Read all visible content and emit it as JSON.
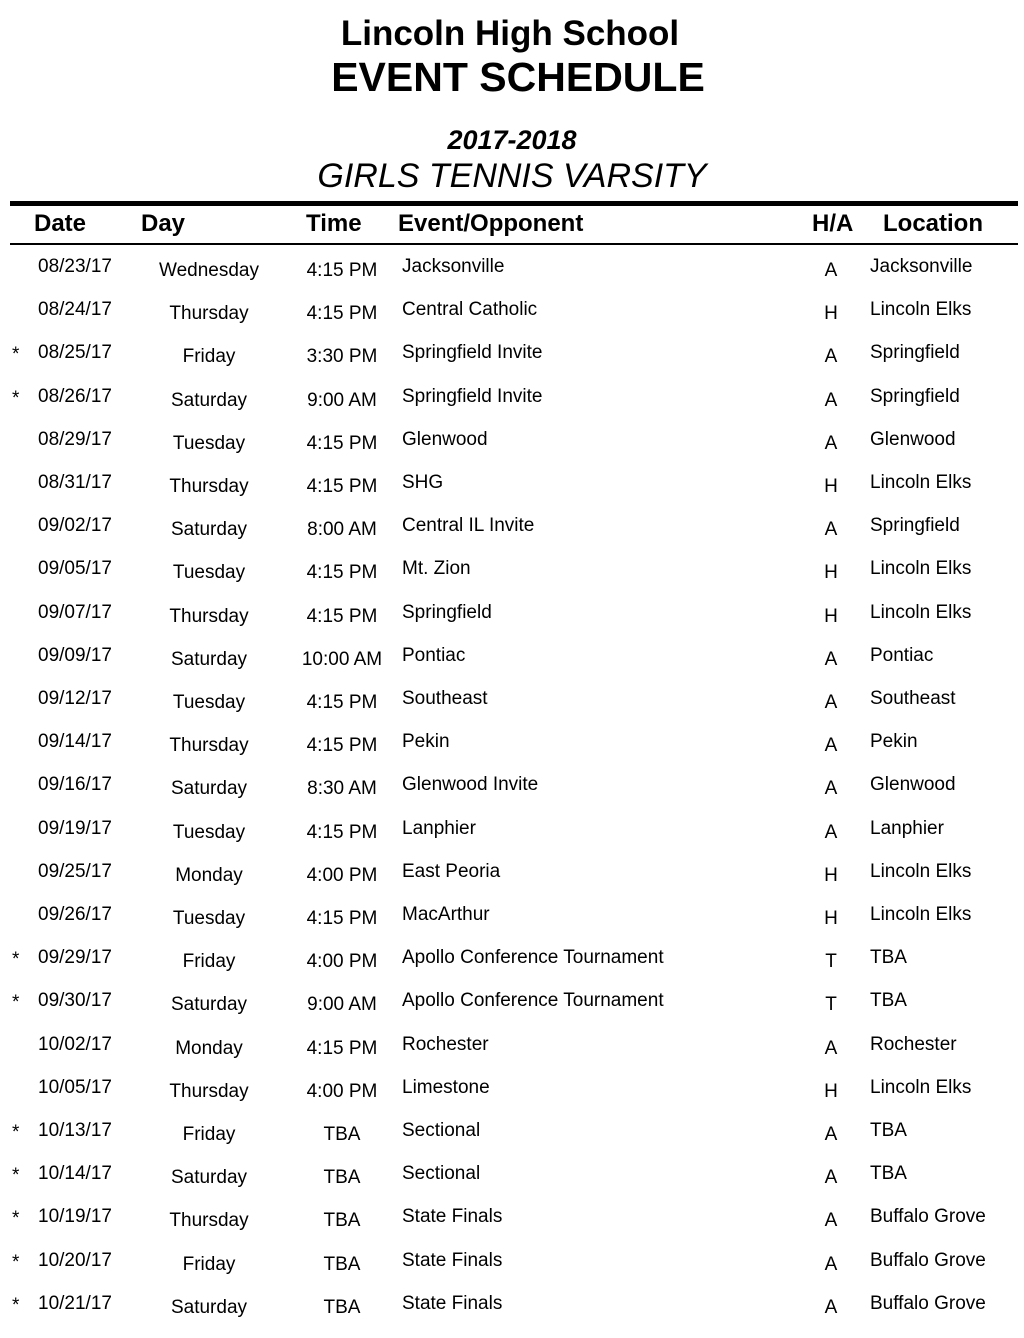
{
  "header": {
    "school": "Lincoln High School",
    "title": "EVENT SCHEDULE",
    "season": "2017-2018",
    "team": "GIRLS TENNIS VARSITY"
  },
  "columns": {
    "date": "Date",
    "day": "Day",
    "time": "Time",
    "event": "Event/Opponent",
    "ha": "H/A",
    "location": "Location"
  },
  "rows": [
    {
      "mark": "",
      "date": "08/23/17",
      "day": "Wednesday",
      "time": "4:15 PM",
      "event": "Jacksonville",
      "ha": "A",
      "location": "Jacksonville"
    },
    {
      "mark": "",
      "date": "08/24/17",
      "day": "Thursday",
      "time": "4:15 PM",
      "event": "Central Catholic",
      "ha": "H",
      "location": "Lincoln Elks"
    },
    {
      "mark": "*",
      "date": "08/25/17",
      "day": "Friday",
      "time": "3:30 PM",
      "event": "Springfield Invite",
      "ha": "A",
      "location": "Springfield"
    },
    {
      "mark": "*",
      "date": "08/26/17",
      "day": "Saturday",
      "time": "9:00 AM",
      "event": "Springfield Invite",
      "ha": "A",
      "location": "Springfield"
    },
    {
      "mark": "",
      "date": "08/29/17",
      "day": "Tuesday",
      "time": "4:15 PM",
      "event": "Glenwood",
      "ha": "A",
      "location": "Glenwood"
    },
    {
      "mark": "",
      "date": "08/31/17",
      "day": "Thursday",
      "time": "4:15 PM",
      "event": "SHG",
      "ha": "H",
      "location": "Lincoln Elks"
    },
    {
      "mark": "",
      "date": "09/02/17",
      "day": "Saturday",
      "time": "8:00 AM",
      "event": "Central IL Invite",
      "ha": "A",
      "location": "Springfield"
    },
    {
      "mark": "",
      "date": "09/05/17",
      "day": "Tuesday",
      "time": "4:15 PM",
      "event": "Mt. Zion",
      "ha": "H",
      "location": "Lincoln Elks"
    },
    {
      "mark": "",
      "date": "09/07/17",
      "day": "Thursday",
      "time": "4:15 PM",
      "event": "Springfield",
      "ha": "H",
      "location": "Lincoln Elks"
    },
    {
      "mark": "",
      "date": "09/09/17",
      "day": "Saturday",
      "time": "10:00 AM",
      "event": "Pontiac",
      "ha": "A",
      "location": "Pontiac"
    },
    {
      "mark": "",
      "date": "09/12/17",
      "day": "Tuesday",
      "time": "4:15 PM",
      "event": "Southeast",
      "ha": "A",
      "location": "Southeast"
    },
    {
      "mark": "",
      "date": "09/14/17",
      "day": "Thursday",
      "time": "4:15 PM",
      "event": "Pekin",
      "ha": "A",
      "location": "Pekin"
    },
    {
      "mark": "",
      "date": "09/16/17",
      "day": "Saturday",
      "time": "8:30 AM",
      "event": "Glenwood Invite",
      "ha": "A",
      "location": "Glenwood"
    },
    {
      "mark": "",
      "date": "09/19/17",
      "day": "Tuesday",
      "time": "4:15 PM",
      "event": "Lanphier",
      "ha": "A",
      "location": "Lanphier"
    },
    {
      "mark": "",
      "date": "09/25/17",
      "day": "Monday",
      "time": "4:00 PM",
      "event": "East Peoria",
      "ha": "H",
      "location": "Lincoln Elks"
    },
    {
      "mark": "",
      "date": "09/26/17",
      "day": "Tuesday",
      "time": "4:15 PM",
      "event": "MacArthur",
      "ha": "H",
      "location": "Lincoln Elks"
    },
    {
      "mark": "*",
      "date": "09/29/17",
      "day": "Friday",
      "time": "4:00 PM",
      "event": "Apollo Conference Tournament",
      "ha": "T",
      "location": "TBA"
    },
    {
      "mark": "*",
      "date": "09/30/17",
      "day": "Saturday",
      "time": "9:00 AM",
      "event": "Apollo Conference Tournament",
      "ha": "T",
      "location": "TBA"
    },
    {
      "mark": "",
      "date": "10/02/17",
      "day": "Monday",
      "time": "4:15 PM",
      "event": "Rochester",
      "ha": "A",
      "location": "Rochester"
    },
    {
      "mark": "",
      "date": "10/05/17",
      "day": "Thursday",
      "time": "4:00 PM",
      "event": "Limestone",
      "ha": "H",
      "location": "Lincoln Elks"
    },
    {
      "mark": "*",
      "date": "10/13/17",
      "day": "Friday",
      "time": "TBA",
      "event": "Sectional",
      "ha": "A",
      "location": "TBA"
    },
    {
      "mark": "*",
      "date": "10/14/17",
      "day": "Saturday",
      "time": "TBA",
      "event": "Sectional",
      "ha": "A",
      "location": "TBA"
    },
    {
      "mark": "*",
      "date": "10/19/17",
      "day": "Thursday",
      "time": "TBA",
      "event": "State Finals",
      "ha": "A",
      "location": "Buffalo Grove"
    },
    {
      "mark": "*",
      "date": "10/20/17",
      "day": "Friday",
      "time": "TBA",
      "event": "State Finals",
      "ha": "A",
      "location": "Buffalo Grove"
    },
    {
      "mark": "*",
      "date": "10/21/17",
      "day": "Saturday",
      "time": "TBA",
      "event": "State Finals",
      "ha": "A",
      "location": "Buffalo Grove"
    }
  ]
}
